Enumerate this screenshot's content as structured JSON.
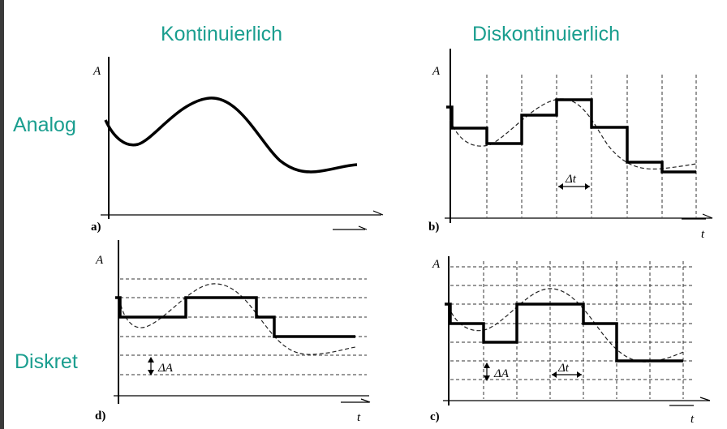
{
  "headings": {
    "kontinuierlich": "Kontinuierlich",
    "diskontinuierlich": "Diskontinuierlich",
    "analog": "Analog",
    "diskret": "Diskret"
  },
  "panels": {
    "a": {
      "label": "a)",
      "y_axis": "A"
    },
    "b": {
      "label": "b)",
      "y_axis": "A",
      "x_axis": "t",
      "delta": "Δt"
    },
    "c": {
      "label": "c)",
      "y_axis": "A",
      "x_axis": "t",
      "delta_a": "ΔA",
      "delta_t": "Δt"
    },
    "d": {
      "label": "d)",
      "y_axis": "A",
      "x_axis": "t",
      "delta": "ΔA"
    }
  },
  "colors": {
    "heading": "#1a9e8f",
    "ink": "#000000"
  }
}
